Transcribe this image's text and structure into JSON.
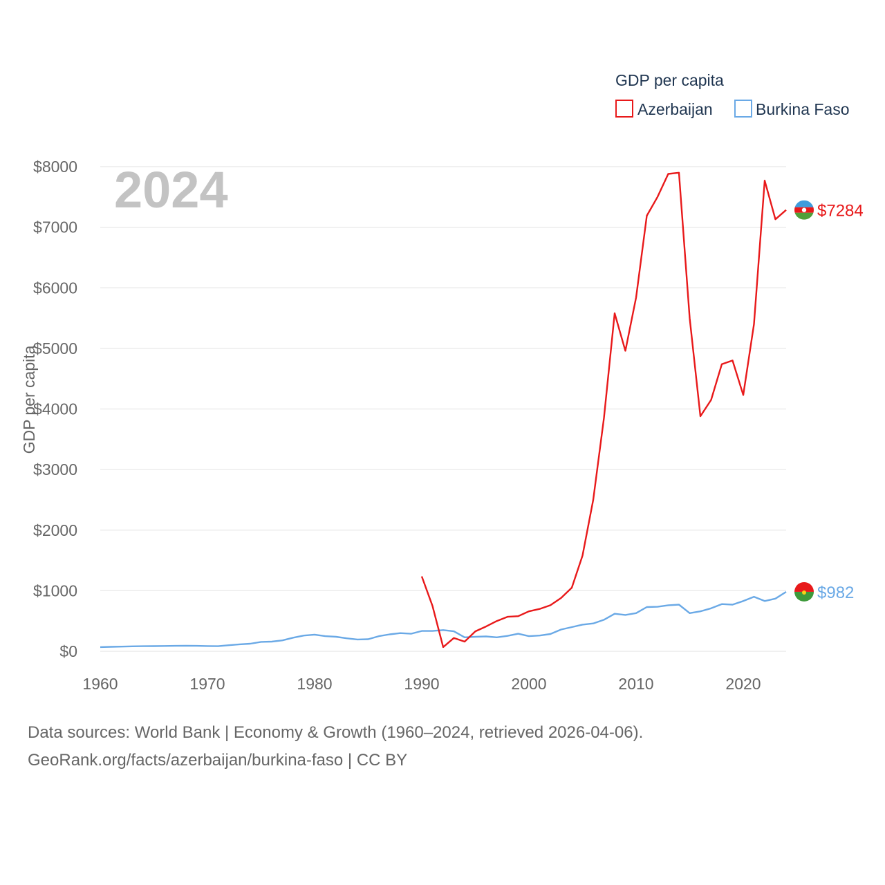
{
  "chart_data": {
    "type": "line",
    "title": "",
    "year_label": "2024",
    "legend_title": "GDP per capita",
    "ylabel": "GDP per capita",
    "xlabel": "",
    "xlim": [
      1960,
      2024
    ],
    "ylim": [
      0,
      8000
    ],
    "x_ticks": [
      1960,
      1970,
      1980,
      1990,
      2000,
      2010,
      2020
    ],
    "y_ticks": [
      0,
      1000,
      2000,
      3000,
      4000,
      5000,
      6000,
      7000,
      8000
    ],
    "y_tick_labels": [
      "$0",
      "$1000",
      "$2000",
      "$3000",
      "$4000",
      "$5000",
      "$6000",
      "$7000",
      "$8000"
    ],
    "x_tick_labels": [
      "1960",
      "1970",
      "1980",
      "1990",
      "2000",
      "2010",
      "2020"
    ],
    "series": [
      {
        "name": "Azerbaijan",
        "color": "#e8191a",
        "end_label": "$7284",
        "flag": "azerbaijan-flag-icon",
        "x": [
          1990,
          1991,
          1992,
          1993,
          1994,
          1995,
          1996,
          1997,
          1998,
          1999,
          2000,
          2001,
          2002,
          2003,
          2004,
          2005,
          2006,
          2007,
          2008,
          2009,
          2010,
          2011,
          2012,
          2013,
          2014,
          2015,
          2016,
          2017,
          2018,
          2019,
          2020,
          2021,
          2022,
          2023,
          2024
        ],
        "values": [
          1237,
          750,
          70,
          220,
          160,
          330,
          410,
          500,
          570,
          580,
          660,
          700,
          760,
          880,
          1050,
          1580,
          2500,
          3850,
          5580,
          4960,
          5840,
          7190,
          7500,
          7880,
          7900,
          5500,
          3880,
          4150,
          4740,
          4800,
          4230,
          5400,
          7770,
          7130,
          7284
        ]
      },
      {
        "name": "Burkina Faso",
        "color": "#6aa9e6",
        "end_label": "$982",
        "flag": "burkina-faso-flag-icon",
        "x": [
          1960,
          1961,
          1962,
          1963,
          1964,
          1965,
          1966,
          1967,
          1968,
          1969,
          1970,
          1971,
          1972,
          1973,
          1974,
          1975,
          1976,
          1977,
          1978,
          1979,
          1980,
          1981,
          1982,
          1983,
          1984,
          1985,
          1986,
          1987,
          1988,
          1989,
          1990,
          1991,
          1992,
          1993,
          1994,
          1995,
          1996,
          1997,
          1998,
          1999,
          2000,
          2001,
          2002,
          2003,
          2004,
          2005,
          2006,
          2007,
          2008,
          2009,
          2010,
          2011,
          2012,
          2013,
          2014,
          2015,
          2016,
          2017,
          2018,
          2019,
          2020,
          2021,
          2022,
          2023,
          2024
        ],
        "values": [
          70,
          74,
          78,
          82,
          84,
          86,
          88,
          90,
          91,
          90,
          87,
          85,
          100,
          115,
          125,
          155,
          160,
          180,
          225,
          260,
          275,
          250,
          240,
          215,
          195,
          200,
          250,
          280,
          300,
          290,
          335,
          335,
          350,
          330,
          230,
          240,
          245,
          230,
          255,
          290,
          250,
          260,
          285,
          360,
          400,
          440,
          460,
          520,
          620,
          600,
          630,
          730,
          735,
          760,
          770,
          630,
          660,
          710,
          780,
          770,
          830,
          900,
          830,
          870,
          982
        ]
      }
    ]
  },
  "source_line_1": "Data sources: World Bank | Economy & Growth (1960–2024, retrieved 2026-04-06).",
  "source_line_2": "GeoRank.org/facts/azerbaijan/burkina-faso | CC BY"
}
